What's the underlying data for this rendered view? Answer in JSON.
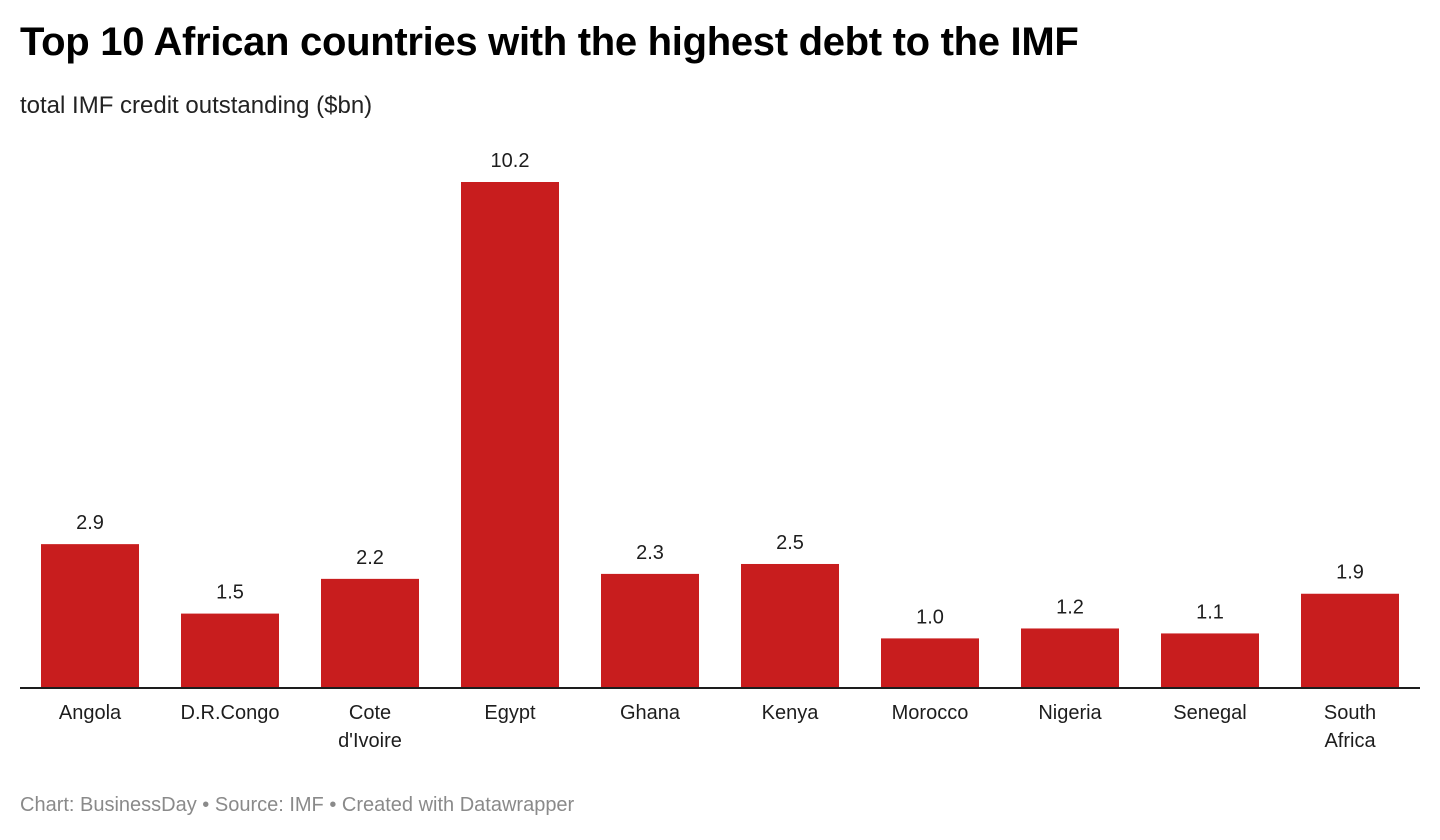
{
  "chart_data": {
    "type": "bar",
    "title": "Top 10 African countries with the highest debt to the IMF",
    "subtitle": "total IMF credit outstanding ($bn)",
    "categories": [
      "Angola",
      "D.R.Congo",
      "Cote d'Ivoire",
      "Egypt",
      "Ghana",
      "Kenya",
      "Morocco",
      "Nigeria",
      "Senegal",
      "South Africa"
    ],
    "category_lines": [
      [
        "Angola"
      ],
      [
        "D.R.Congo"
      ],
      [
        "Cote",
        "d'Ivoire"
      ],
      [
        "Egypt"
      ],
      [
        "Ghana"
      ],
      [
        "Kenya"
      ],
      [
        "Morocco"
      ],
      [
        "Nigeria"
      ],
      [
        "Senegal"
      ],
      [
        "South",
        "Africa"
      ]
    ],
    "values": [
      2.9,
      1.5,
      2.2,
      10.2,
      2.3,
      2.5,
      1.0,
      1.2,
      1.1,
      1.9
    ],
    "value_labels": [
      "2.9",
      "1.5",
      "2.2",
      "10.2",
      "2.3",
      "2.5",
      "1.0",
      "1.2",
      "1.1",
      "1.9"
    ],
    "ylim": [
      0,
      10.2
    ],
    "grid": false,
    "bar_color": "#c81d1e",
    "axis_color": "#1d1d1d"
  },
  "footer": "Chart: BusinessDay • Source: IMF • Created with Datawrapper"
}
